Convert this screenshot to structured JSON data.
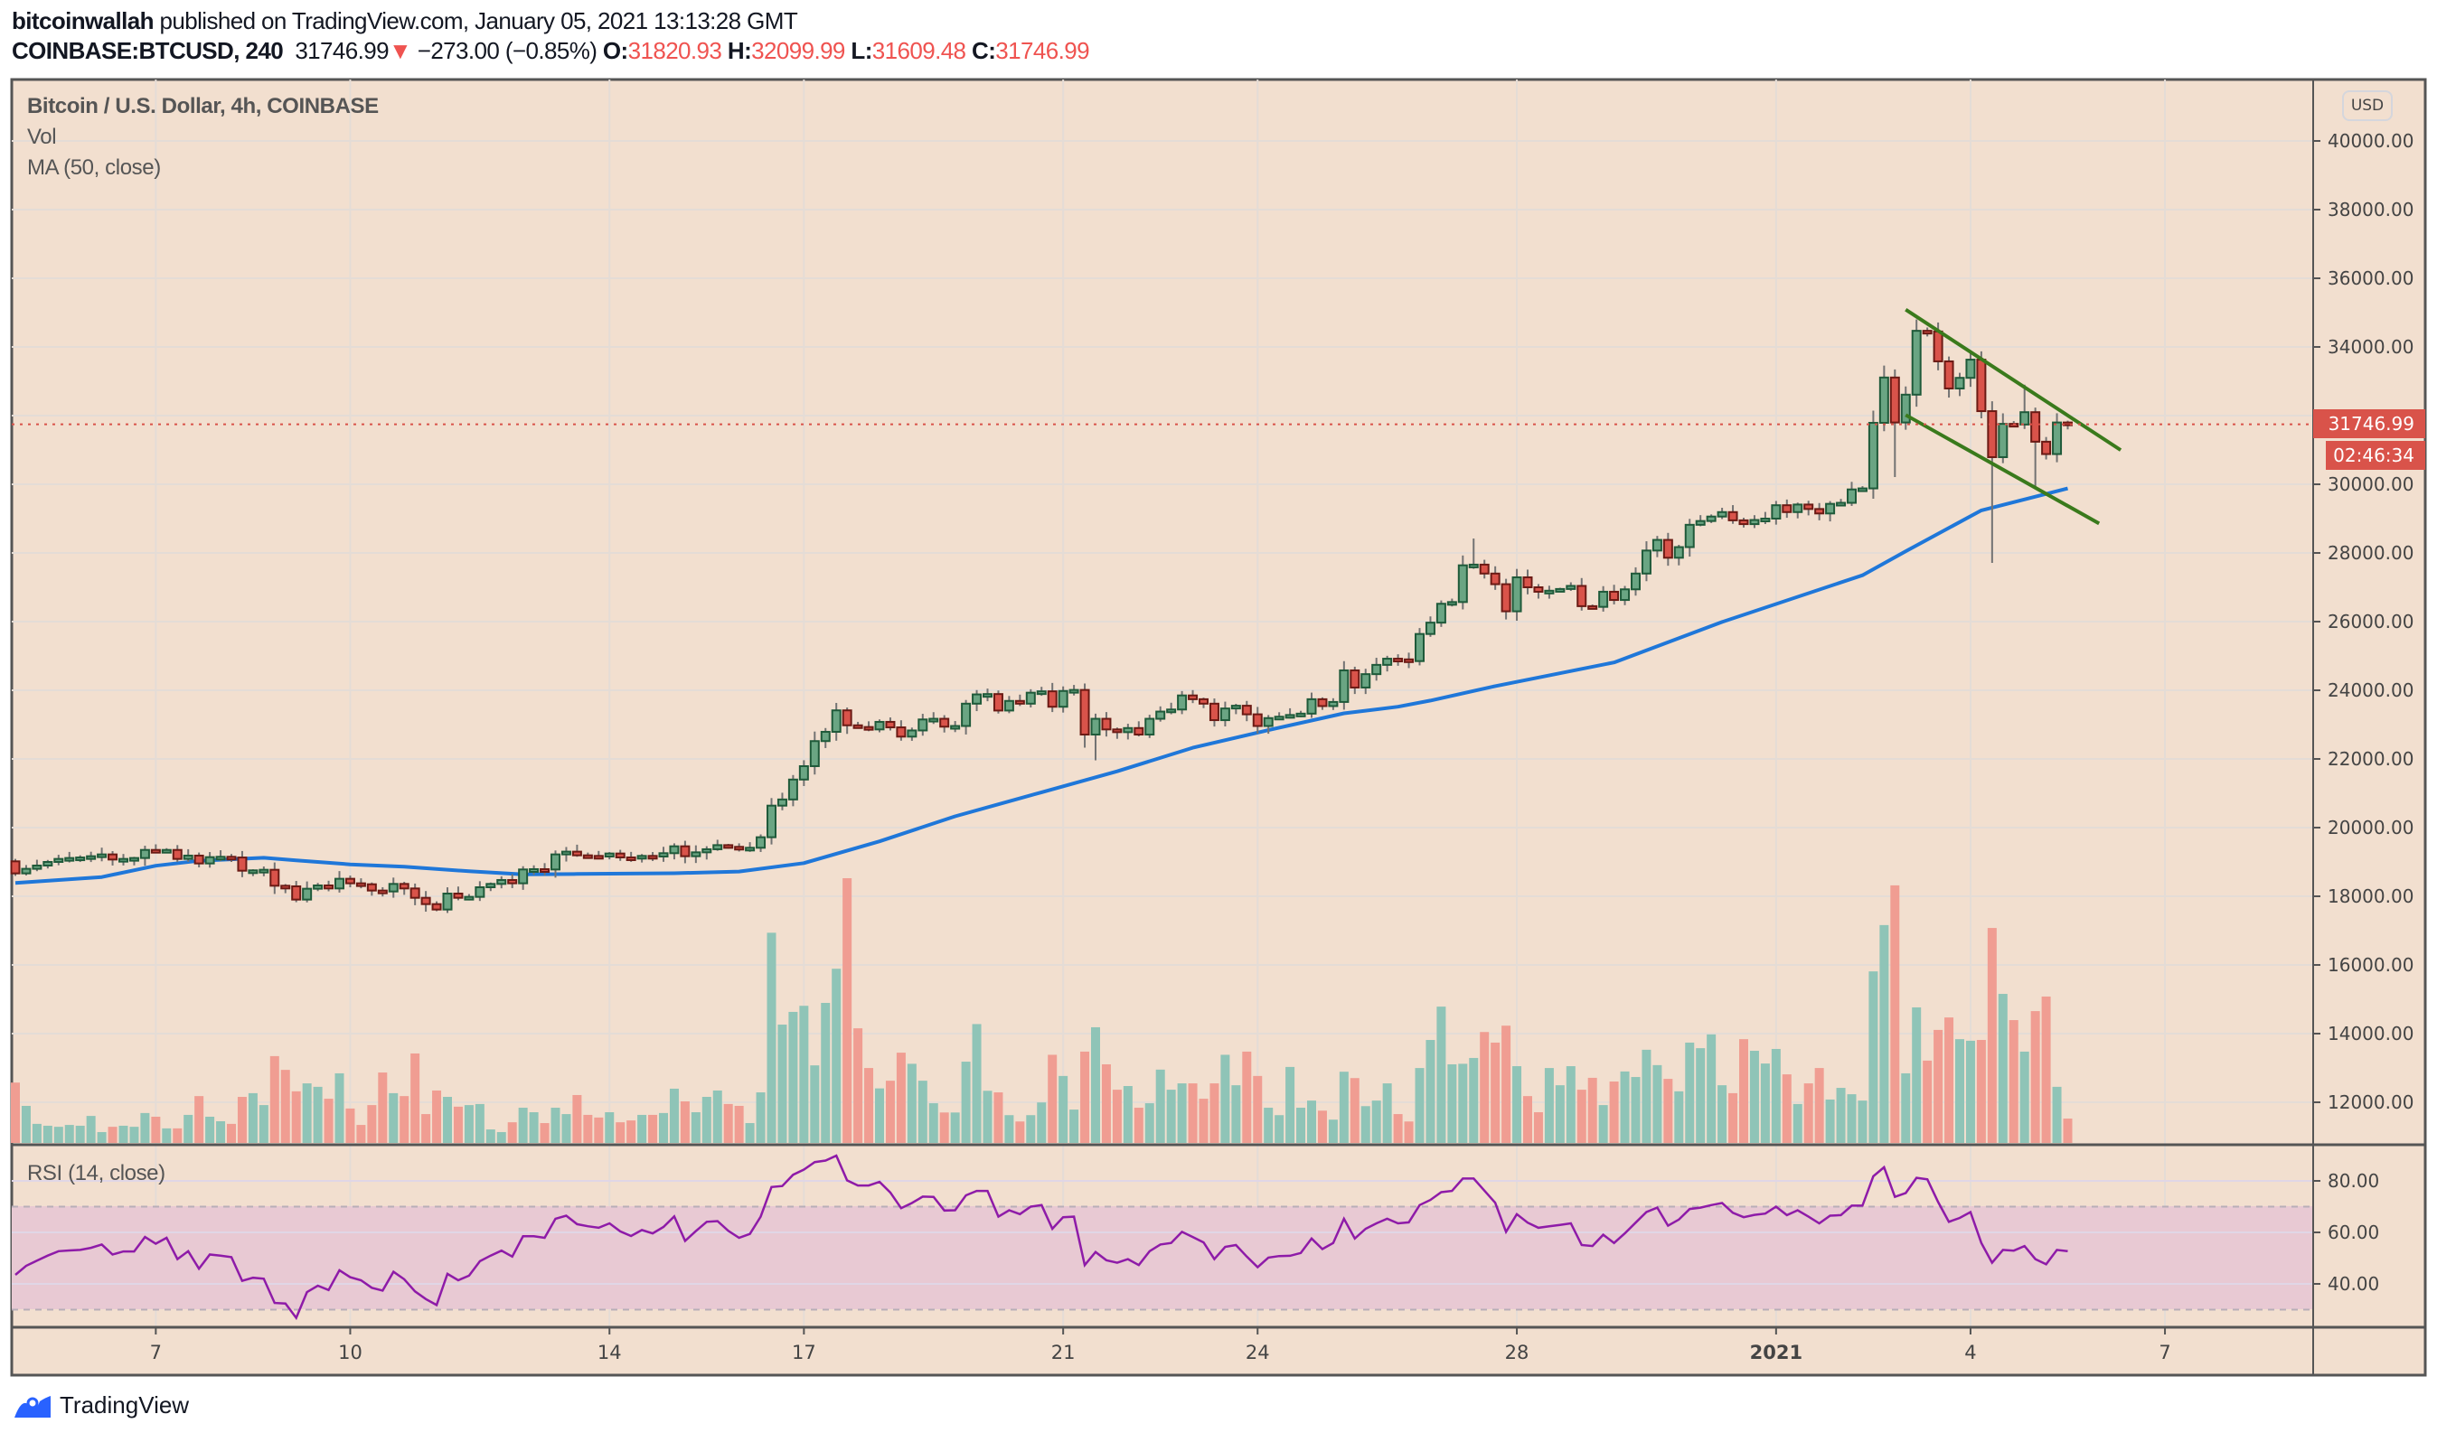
{
  "header": {
    "author": "bitcoinwallah",
    "published": "published on TradingView.com, January 05, 2021 13:13:28 GMT",
    "symbol": "COINBASE:BTCUSD, 240",
    "last": "31746.99",
    "arrow": "▼",
    "change": "−273.00 (−0.85%)",
    "o_label": "O:",
    "o": "31820.93",
    "h_label": "H:",
    "h": "32099.99",
    "l_label": "L:",
    "l": "31609.48",
    "c_label": "C:",
    "c": "31746.99"
  },
  "legend": {
    "title": "Bitcoin / U.S. Dollar, 4h, COINBASE",
    "vol": "Vol",
    "ma": "MA (50, close)",
    "rsi": "RSI (14, close)"
  },
  "price_axis": {
    "currency_button": "USD",
    "last_price_tag": "31746.99",
    "countdown_tag": "02:46:34"
  },
  "footer": {
    "brand": "TradingView"
  },
  "colors": {
    "background": "#f2dfcf",
    "up_body": "#6aa583",
    "up_border": "#1f5a3a",
    "down_body": "#d9534a",
    "down_border": "#6b1a14",
    "vol_up": "#8fc4b7",
    "vol_down": "#f09d92",
    "ma": "#1f77d9",
    "rsi": "#8e1ba8",
    "trendline": "#3a7a1c",
    "last_price": "#d9534a"
  },
  "chart_data": {
    "type": "candlestick",
    "title": "Bitcoin / U.S. Dollar, 4h, COINBASE",
    "interval_hours": 4,
    "first_candle_time": "2020-12-04T20:00Z",
    "first_open": 19018,
    "close": [
      18667,
      18800,
      18895,
      19000,
      19088,
      19115,
      19130,
      19167,
      19220,
      19070,
      19088,
      19115,
      19350,
      19307,
      19350,
      19088,
      19185,
      18956,
      19140,
      19150,
      19130,
      18745,
      18755,
      18772,
      18307,
      18290,
      17904,
      18220,
      18316,
      18228,
      18510,
      18378,
      18350,
      18167,
      18140,
      18360,
      18228,
      17956,
      17772,
      17614,
      18079,
      17956,
      17983,
      18263,
      18360,
      18474,
      18378,
      18781,
      18790,
      18780,
      19220,
      19300,
      19193,
      19176,
      19158,
      19246,
      19132,
      19106,
      19176,
      19158,
      19255,
      19456,
      19167,
      19280,
      19370,
      19490,
      19440,
      19370,
      19413,
      19720,
      20640,
      20820,
      21400,
      21790,
      22520,
      22790,
      23415,
      22980,
      22930,
      22860,
      23080,
      22920,
      22650,
      22830,
      23150,
      23170,
      22940,
      22960,
      23610,
      23880,
      23890,
      23410,
      23690,
      23610,
      23930,
      23970,
      23520,
      23980,
      24010,
      22710,
      23170,
      22860,
      22780,
      22900,
      22710,
      23170,
      23380,
      23440,
      23850,
      23740,
      23610,
      23130,
      23470,
      23550,
      23300,
      22960,
      23190,
      23230,
      23280,
      23320,
      23740,
      23540,
      23660,
      24580,
      24080,
      24470,
      24740,
      24920,
      24900,
      24850,
      25640,
      25970,
      26520,
      26570,
      27640,
      27660,
      27400,
      27090,
      26300,
      27290,
      27000,
      26870,
      26900,
      26950,
      27040,
      26450,
      26430,
      26870,
      26630,
      26940,
      27400,
      28070,
      28380,
      27860,
      28170,
      28820,
      28930,
      29060,
      29190,
      28950,
      28840,
      28960,
      29000,
      29390,
      29190,
      29410,
      29280,
      29150,
      29430,
      29460,
      29850,
      29880,
      31790,
      33110,
      31800,
      32610,
      34470,
      34450,
      33580,
      32790,
      33100,
      33630,
      32130,
      30790,
      31760,
      31740,
      32100,
      31240,
      30880,
      31800,
      31746.99
    ],
    "wick_extremes": [
      {
        "i": 99,
        "low": 22330
      },
      {
        "i": 100,
        "low": 21960
      },
      {
        "i": 135,
        "high": 28420
      },
      {
        "i": 174,
        "low": 30210
      },
      {
        "i": 176,
        "high": 34800
      },
      {
        "i": 183,
        "low": 27710
      },
      {
        "i": 186,
        "high": 32900
      },
      {
        "i": 187,
        "low": 29920
      }
    ],
    "volume_relative_pct": [
      22.8,
      14.0,
      7.2,
      6.5,
      6.1,
      6.8,
      6.5,
      10.2,
      4.1,
      6.1,
      6.5,
      6.1,
      11.3,
      9.9,
      5.5,
      5.5,
      10.6,
      17.7,
      9.9,
      8.2,
      7.2,
      17.4,
      18.8,
      14.3,
      32.8,
      27.6,
      19.5,
      22.5,
      21.2,
      16.7,
      26.3,
      13.0,
      6.8,
      14.3,
      26.6,
      18.8,
      17.7,
      33.8,
      10.9,
      19.8,
      17.4,
      13.7,
      14.3,
      14.7,
      5.1,
      4.1,
      7.8,
      13.3,
      11.6,
      7.5,
      13.3,
      10.9,
      18.1,
      10.6,
      9.6,
      11.6,
      7.8,
      8.5,
      10.6,
      10.6,
      11.3,
      20.5,
      15.7,
      11.6,
      17.4,
      19.8,
      14.7,
      14.0,
      7.5,
      19.1,
      79.4,
      44.7,
      49.5,
      51.8,
      29.3,
      52.9,
      65.8,
      100,
      43.3,
      28.3,
      20.6,
      23.5,
      34.1,
      29.9,
      23.5,
      15.0,
      11.5,
      11.5,
      30.7,
      44.9,
      19.7,
      19.1,
      10.5,
      8.1,
      10.5,
      15.3,
      33.3,
      25.3,
      12.6,
      34.5,
      43.7,
      29.7,
      20.1,
      21.5,
      13.3,
      15.0,
      27.7,
      20.1,
      22.5,
      22.5,
      16.7,
      22.5,
      33.3,
      21.8,
      34.5,
      25.3,
      13.3,
      10.5,
      28.7,
      13.3,
      16.0,
      12.2,
      8.8,
      26.9,
      24.5,
      13.9,
      16.0,
      22.5,
      10.9,
      8.1,
      28.3,
      38.9,
      51.5,
      29.7,
      29.9,
      32.1,
      41.9,
      37.9,
      44.3,
      29.0,
      17.7,
      11.6,
      28.3,
      21.8,
      29.0,
      20.1,
      24.6,
      14.3,
      23.2,
      27.0,
      24.9,
      35.2,
      29.4,
      24.2,
      19.5,
      37.9,
      35.8,
      41.0,
      21.8,
      18.8,
      39.2,
      34.8,
      30.0,
      35.5,
      25.9,
      14.7,
      22.5,
      28.3,
      16.4,
      20.8,
      18.4,
      16.0,
      64.8,
      82.3,
      97.3,
      26.3,
      51.2,
      31.1,
      42.7,
      47.4,
      39.2,
      38.6,
      38.9,
      81.2,
      56.3,
      46.4,
      34.5,
      49.8,
      55.3,
      21.2,
      9.2
    ],
    "ma50_points": [
      [
        0,
        18390
      ],
      [
        8,
        18560
      ],
      [
        13,
        18890
      ],
      [
        17,
        19035
      ],
      [
        23,
        19120
      ],
      [
        26,
        19044
      ],
      [
        31,
        18930
      ],
      [
        36,
        18860
      ],
      [
        42,
        18730
      ],
      [
        47,
        18640
      ],
      [
        52,
        18650
      ],
      [
        61,
        18670
      ],
      [
        67,
        18720
      ],
      [
        73,
        18965
      ],
      [
        80,
        19600
      ],
      [
        87,
        20330
      ],
      [
        95,
        21030
      ],
      [
        102,
        21640
      ],
      [
        109,
        22325
      ],
      [
        116,
        22840
      ],
      [
        123,
        23330
      ],
      [
        128,
        23520
      ],
      [
        131,
        23700
      ],
      [
        137,
        24120
      ],
      [
        148,
        24810
      ],
      [
        158,
        25990
      ],
      [
        171,
        27350
      ],
      [
        175,
        28050
      ],
      [
        182,
        29240
      ],
      [
        190,
        29880
      ]
    ],
    "rsi": [
      43.5,
      47,
      49,
      51,
      52.7,
      53,
      53.2,
      54,
      55.3,
      51.4,
      52.6,
      52.6,
      58.2,
      55.6,
      57.9,
      49.6,
      52.7,
      45.9,
      51.4,
      51,
      50.4,
      41.2,
      42.4,
      42,
      32.6,
      32.4,
      26.8,
      36.8,
      39.3,
      37.6,
      45.3,
      42.6,
      41.4,
      38.5,
      37.4,
      44.7,
      41.8,
      37.1,
      34.1,
      31.8,
      43.9,
      41.4,
      43.2,
      48.8,
      51,
      52.9,
      50.6,
      58.5,
      58.5,
      57.9,
      65.3,
      66.5,
      63.2,
      62.4,
      61.8,
      63.5,
      60.4,
      58.6,
      60.9,
      59.6,
      62.1,
      66.2,
      56.7,
      60.5,
      64.1,
      64.4,
      60.6,
      57.9,
      59.4,
      66.1,
      77.6,
      78,
      82.4,
      84.4,
      87.3,
      87.9,
      89.8,
      80.2,
      78.2,
      78.2,
      79.6,
      75.5,
      69.4,
      71.4,
      73.9,
      73.8,
      68.5,
      68.6,
      74.4,
      76.1,
      76.1,
      66.1,
      68.6,
      67.1,
      70,
      70.6,
      61.4,
      65.9,
      66.1,
      47.3,
      52.4,
      49.2,
      48.2,
      49.6,
      47.3,
      52.7,
      55.3,
      55.9,
      60.2,
      58.2,
      56.1,
      49.6,
      54.4,
      55.1,
      50.6,
      46.5,
      50.2,
      50.8,
      50.9,
      52,
      57.6,
      53.5,
      55.9,
      65.3,
      57.6,
      61.4,
      63.5,
      65.3,
      63.5,
      63.9,
      70.6,
      72.6,
      75.6,
      76.1,
      80.9,
      80.9,
      76.2,
      71.5,
      60.2,
      67.1,
      63.8,
      61.8,
      62.4,
      62.9,
      63.5,
      55.1,
      54.7,
      59.1,
      55.9,
      59.6,
      63.8,
      67.9,
      69.6,
      62.6,
      65,
      69.1,
      69.6,
      70.6,
      71.4,
      67.6,
      65.9,
      66.8,
      67.3,
      70,
      66.7,
      68.6,
      66.1,
      63.5,
      66.5,
      66.7,
      70.4,
      70.4,
      81.8,
      85.3,
      73.8,
      75.3,
      81.2,
      80.6,
      71.8,
      64.1,
      65.6,
      67.9,
      55.9,
      48.2,
      53.2,
      52.9,
      54.7,
      49.6,
      47.6,
      53.2,
      52.7
    ],
    "rsi_bands": {
      "upper": 70,
      "lower": 30
    },
    "trendlines": [
      {
        "name": "upper",
        "from": [
          175,
          35087
        ],
        "to": [
          194.9,
          30997
        ]
      },
      {
        "name": "lower",
        "from": [
          175,
          32018
        ],
        "to": [
          192.9,
          28858
        ]
      }
    ],
    "last_price": 31746.99,
    "y_ticks": [
      "40000.00",
      "38000.00",
      "36000.00",
      "34000.00",
      "30000.00",
      "28000.00",
      "26000.00",
      "24000.00",
      "22000.00",
      "20000.00",
      "18000.00",
      "16000.00",
      "14000.00",
      "12000.00"
    ],
    "grid_prices": [
      40000,
      38000,
      36000,
      34000,
      32000,
      30000,
      28000,
      26000,
      24000,
      22000,
      20000,
      18000,
      16000,
      14000,
      12000
    ],
    "ylim": [
      11000,
      41500
    ],
    "rsi_ticks": [
      "80.00",
      "60.00",
      "40.00"
    ],
    "x_ticks": [
      {
        "label": "7",
        "time": "2020-12-07T00:00Z"
      },
      {
        "label": "10",
        "time": "2020-12-10T00:00Z"
      },
      {
        "label": "14",
        "time": "2020-12-14T00:00Z"
      },
      {
        "label": "17",
        "time": "2020-12-17T00:00Z"
      },
      {
        "label": "21",
        "time": "2020-12-21T00:00Z"
      },
      {
        "label": "24",
        "time": "2020-12-24T00:00Z"
      },
      {
        "label": "28",
        "time": "2020-12-28T00:00Z"
      },
      {
        "label": "2021",
        "time": "2021-01-01T00:00Z",
        "bold": true
      },
      {
        "label": "4",
        "time": "2021-01-04T00:00Z"
      },
      {
        "label": "7",
        "time": "2021-01-07T00:00Z"
      }
    ]
  }
}
